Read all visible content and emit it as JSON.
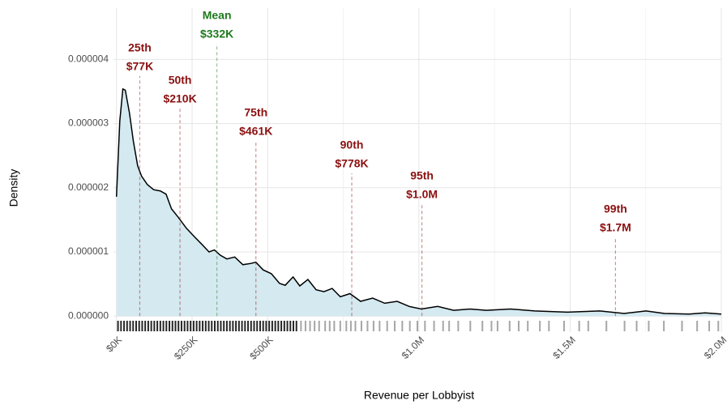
{
  "chart_data": {
    "type": "density",
    "x_label": "Revenue per Lobbyist",
    "y_label": "Density",
    "x": [
      0,
      11000,
      21000,
      29000,
      43000,
      56000,
      70000,
      83000,
      102000,
      123000,
      145000,
      164000,
      182000,
      204000,
      231000,
      257000,
      284000,
      306000,
      324000,
      343000,
      365000,
      391000,
      418000,
      445000,
      461000,
      485000,
      512000,
      539000,
      558000,
      584000,
      606000,
      633000,
      660000,
      686000,
      713000,
      740000,
      772000,
      807000,
      847000,
      887000,
      928000,
      968000,
      1008000,
      1062000,
      1115000,
      1169000,
      1223000,
      1303000,
      1383000,
      1491000,
      1598000,
      1678000,
      1751000,
      1812000,
      1893000,
      1946000,
      2000000
    ],
    "values": [
      1.86e-06,
      3.04e-06,
      3.54e-06,
      3.52e-06,
      3.16e-06,
      2.72e-06,
      2.34e-06,
      2.18e-06,
      2.05e-06,
      1.97e-06,
      1.95e-06,
      1.9e-06,
      1.67e-06,
      1.54e-06,
      1.37e-06,
      1.24e-06,
      1.11e-06,
      1e-06,
      1.03e-06,
      9.5e-07,
      8.9e-07,
      9.2e-07,
      8e-07,
      8.2e-07,
      8.4e-07,
      7.2e-07,
      6.6e-07,
      5.1e-07,
      4.8e-07,
      6.1e-07,
      4.7e-07,
      5.7e-07,
      4.1e-07,
      3.8e-07,
      4.3e-07,
      3e-07,
      3.5e-07,
      2.3e-07,
      2.8e-07,
      2e-07,
      2.3e-07,
      1.5e-07,
      1.1e-07,
      1.5e-07,
      9e-08,
      1.1e-07,
      9e-08,
      1.1e-07,
      8e-08,
      6e-08,
      8e-08,
      4e-08,
      8e-08,
      4e-08,
      3e-08,
      5e-08,
      3e-08
    ],
    "fill_color": "#d4e9f0",
    "line_color": "#000000",
    "rug": [
      5000,
      15000,
      25000,
      35000,
      45000,
      55000,
      65000,
      75000,
      85000,
      95000,
      105000,
      115000,
      125000,
      135000,
      145000,
      155000,
      165000,
      175000,
      185000,
      195000,
      205000,
      215000,
      225000,
      235000,
      245000,
      255000,
      265000,
      275000,
      285000,
      295000,
      305000,
      315000,
      325000,
      335000,
      345000,
      355000,
      365000,
      375000,
      385000,
      395000,
      405000,
      415000,
      425000,
      435000,
      445000,
      455000,
      465000,
      475000,
      485000,
      495000,
      505000,
      515000,
      525000,
      535000,
      545000,
      555000,
      565000,
      575000,
      585000,
      595000,
      610000,
      625000,
      640000,
      655000,
      670000,
      690000,
      705000,
      720000,
      740000,
      760000,
      775000,
      790000,
      810000,
      830000,
      850000,
      870000,
      895000,
      920000,
      945000,
      970000,
      995000,
      1020000,
      1050000,
      1080000,
      1100000,
      1130000,
      1170000,
      1210000,
      1240000,
      1260000,
      1300000,
      1330000,
      1360000,
      1400000,
      1430000,
      1480000,
      1530000,
      1560000,
      1620000,
      1680000,
      1720000,
      1760000,
      1810000,
      1870000,
      1920000,
      1960000,
      1990000
    ],
    "percentiles": {
      "names": [
        "25th",
        "50th",
        "75th",
        "90th",
        "95th",
        "99th"
      ],
      "values": [
        77000,
        210000,
        461000,
        778000,
        1010000,
        1650000
      ],
      "value_labels": [
        "$77K",
        "$210K",
        "$461K",
        "$778K",
        "$1.0M",
        "$1.7M"
      ],
      "color": "#8b1010"
    },
    "mean": {
      "name": "Mean",
      "value": 332000,
      "value_label": "$332K",
      "color": "#1e7a1e"
    },
    "xlim": [
      -10000,
      2000000
    ],
    "ylim": [
      -2.5e-07,
      4.8e-06
    ],
    "xticks": [
      {
        "value": 0,
        "label": "$0K"
      },
      {
        "value": 250000,
        "label": "$250K"
      },
      {
        "value": 500000,
        "label": "$500K"
      },
      {
        "value": 1000000,
        "label": "$1.0M"
      },
      {
        "value": 1500000,
        "label": "$1.5M"
      },
      {
        "value": 2000000,
        "label": "$2.0M"
      }
    ],
    "x_minor_grid": [
      750000,
      1250000,
      1750000
    ],
    "yticks": [
      {
        "value": 0,
        "label": "0.000000"
      },
      {
        "value": 1e-06,
        "label": "0.000001"
      },
      {
        "value": 2e-06,
        "label": "0.000002"
      },
      {
        "value": 3e-06,
        "label": "0.000003"
      },
      {
        "value": 4e-06,
        "label": "0.000004"
      }
    ],
    "grid": true
  }
}
